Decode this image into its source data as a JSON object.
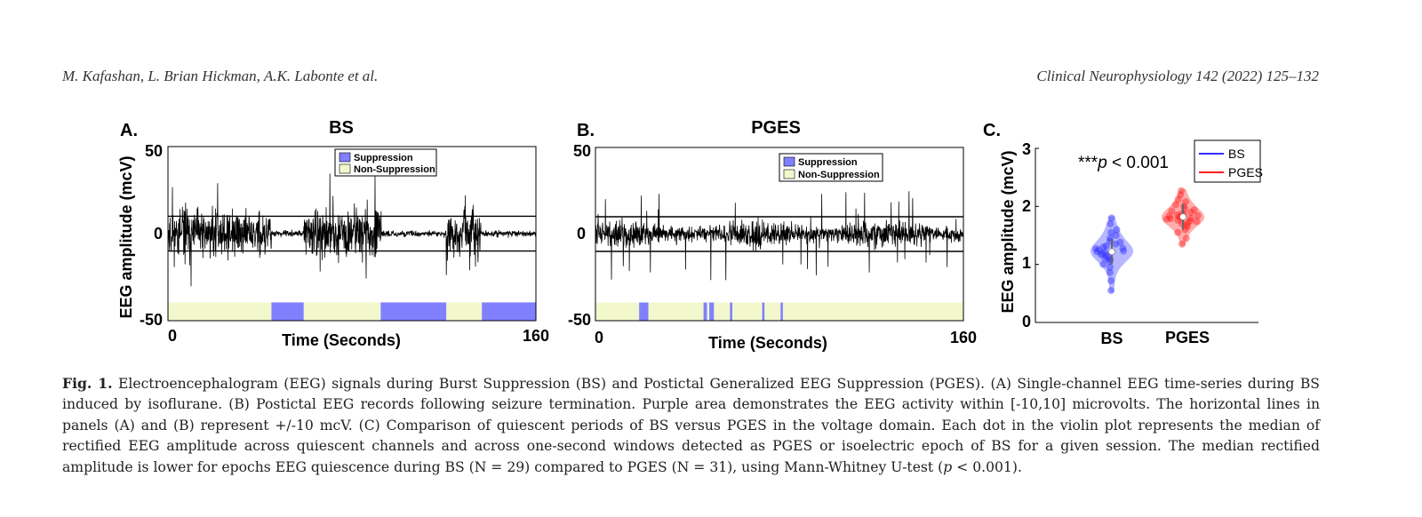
{
  "header": {
    "authors": "M. Kafashan, L. Brian Hickman, A.K. Labonte et al.",
    "journal": "Clinical Neurophysiology 142 (2022) 125–132"
  },
  "colors": {
    "suppression": "#8080ff",
    "non_suppression": "#f2f8cc",
    "bs": "#3030ff",
    "pges": "#ff2020",
    "bs_violin": "#aaaaff",
    "pges_violin": "#ff9f9f"
  },
  "chart_data": [
    {
      "type": "line",
      "panel_label": "A.",
      "title": "BS",
      "xlabel": "Time (Seconds)",
      "ylabel": "EEG amplitude (mcV)",
      "xlim": [
        0,
        160
      ],
      "ylim": [
        -50,
        50
      ],
      "xtick_labels": [
        "0",
        "160"
      ],
      "ytick_labels": [
        "50",
        "0",
        "-50"
      ],
      "threshold_lines": [
        10,
        -10
      ],
      "legend": {
        "position": "top-center",
        "entries": [
          "Suppression",
          "Non-Suppression"
        ]
      },
      "burst_intervals": [
        [
          0,
          45
        ],
        [
          59,
          93
        ],
        [
          121,
          136
        ]
      ],
      "suppression_intervals": [
        [
          45,
          59
        ],
        [
          92.5,
          121
        ],
        [
          136.5,
          160
        ]
      ]
    },
    {
      "type": "line",
      "panel_label": "B.",
      "title": "PGES",
      "xlabel": "Time (Seconds)",
      "ylabel": "",
      "xlim": [
        0,
        160
      ],
      "ylim": [
        -50,
        50
      ],
      "xtick_labels": [
        "0",
        "160"
      ],
      "ytick_labels": [
        "50",
        "0",
        "-50"
      ],
      "threshold_lines": [
        10,
        -10
      ],
      "legend": {
        "position": "top-right",
        "entries": [
          "Suppression",
          "Non-Suppression"
        ]
      },
      "suppression_intervals": [
        [
          19,
          23
        ],
        [
          47,
          48.5
        ],
        [
          49.5,
          51.5
        ],
        [
          58.5,
          59.5
        ],
        [
          72.5,
          73.5
        ],
        [
          80.5,
          81.5
        ]
      ]
    },
    {
      "type": "scatter",
      "subtype": "violin",
      "panel_label": "C.",
      "ylabel": "EEG amplitude (mcV)",
      "ylim": [
        0,
        3
      ],
      "ytick_labels": [
        "0",
        "1",
        "2",
        "3"
      ],
      "categories": [
        "BS",
        "PGES"
      ],
      "annotation": {
        "stars": "***",
        "p": "p",
        "rest": " < 0.001"
      },
      "legend": {
        "position": "top-right",
        "entries": [
          "BS",
          "PGES"
        ]
      },
      "series": [
        {
          "name": "BS",
          "median": 1.22,
          "values": [
            0.55,
            0.72,
            0.86,
            0.95,
            1.0,
            1.05,
            1.08,
            1.1,
            1.12,
            1.15,
            1.17,
            1.19,
            1.21,
            1.22,
            1.23,
            1.25,
            1.27,
            1.28,
            1.3,
            1.32,
            1.35,
            1.38,
            1.4,
            1.45,
            1.5,
            1.55,
            1.6,
            1.7,
            1.8
          ]
        },
        {
          "name": "PGES",
          "median": 1.82,
          "values": [
            1.35,
            1.45,
            1.55,
            1.6,
            1.65,
            1.68,
            1.7,
            1.72,
            1.74,
            1.75,
            1.76,
            1.78,
            1.79,
            1.8,
            1.81,
            1.82,
            1.83,
            1.84,
            1.85,
            1.86,
            1.88,
            1.9,
            1.92,
            1.94,
            1.96,
            2.0,
            2.03,
            2.08,
            2.12,
            2.2,
            2.27
          ]
        }
      ]
    }
  ],
  "caption": {
    "label": "Fig. 1.",
    "text": " Electroencephalogram (EEG) signals during Burst Suppression (BS) and Postictal Generalized EEG Suppression (PGES). (A) Single-channel EEG time-series during BS induced by isoflurane. (B) Postictal EEG records following seizure termination. Purple area demonstrates the EEG activity within [-10,10] microvolts. The horizontal lines in panels (A) and (B) represent +/-10 mcV. (C) Comparison of quiescent periods of BS versus PGES in the voltage domain. Each dot in the violin plot represents the median of rectified EEG amplitude across quiescent channels and across one-second windows detected as PGES or isoelectric epoch of BS for a given session. The median rectified amplitude is lower for epochs EEG quiescence during BS (N = 29) compared to PGES (N = 31), using Mann-Whitney U-test (",
    "p": "p",
    "text_end": " < 0.001)."
  }
}
